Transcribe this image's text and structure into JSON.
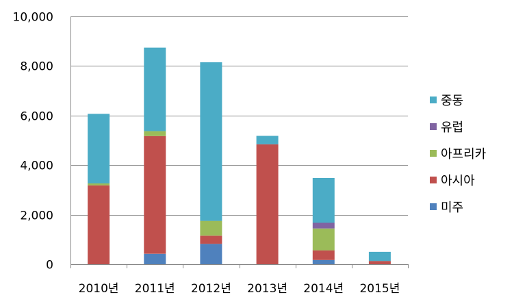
{
  "chart_data": {
    "type": "bar",
    "stacked": true,
    "categories": [
      "2010년",
      "2011년",
      "2012년",
      "2013년",
      "2014년",
      "2015년"
    ],
    "ylim": [
      0,
      10000
    ],
    "yticks": [
      "0",
      "2,000",
      "4,000",
      "6,000",
      "8,000",
      "10,000"
    ],
    "grid": true,
    "legend_position": "right",
    "series": [
      {
        "name": "미주",
        "color": "#4F81BD",
        "values": [
          0,
          420,
          820,
          0,
          170,
          0
        ]
      },
      {
        "name": "아시아",
        "color": "#C0504D",
        "values": [
          3180,
          4750,
          330,
          4840,
          390,
          130
        ]
      },
      {
        "name": "아프리카",
        "color": "#9BBB59",
        "values": [
          80,
          200,
          600,
          0,
          880,
          0
        ]
      },
      {
        "name": "유럽",
        "color": "#8064A2",
        "values": [
          0,
          0,
          0,
          0,
          230,
          0
        ]
      },
      {
        "name": "중동",
        "color": "#4BACC6",
        "values": [
          2810,
          3370,
          6400,
          340,
          1810,
          370
        ]
      }
    ]
  }
}
